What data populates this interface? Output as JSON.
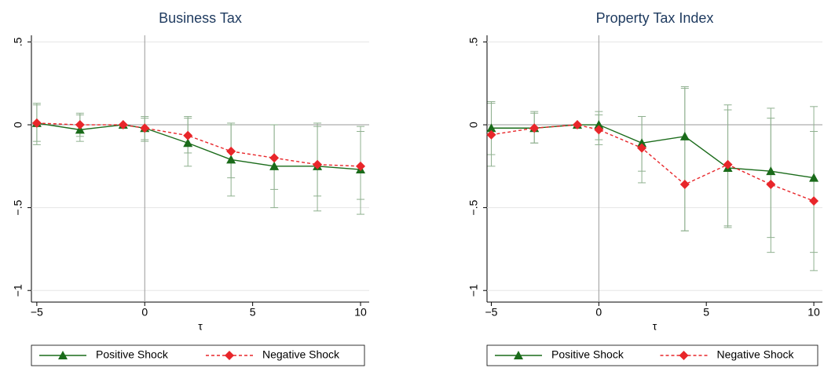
{
  "chart_data": [
    {
      "type": "line",
      "title": "Business Tax",
      "x_label": "τ",
      "x": [
        -5,
        -3,
        -1,
        0,
        2,
        4,
        6,
        8,
        10
      ],
      "series": [
        {
          "name": "Positive Shock",
          "color": "#1a6b1a",
          "marker": "triangle",
          "line_style": "solid",
          "values": [
            0.01,
            -0.03,
            0,
            -0.02,
            -0.11,
            -0.21,
            -0.25,
            -0.25,
            -0.27
          ],
          "ci_low": [
            -0.12,
            -0.1,
            null,
            -0.09,
            -0.25,
            -0.43,
            -0.5,
            -0.52,
            -0.54
          ],
          "ci_high": [
            0.13,
            0.06,
            null,
            0.04,
            0.05,
            0.01,
            0.0,
            0.01,
            -0.01
          ]
        },
        {
          "name": "Negative Shock",
          "color": "#e8262a",
          "marker": "diamond",
          "line_style": "dashed",
          "values": [
            0.01,
            0.0,
            0,
            -0.02,
            -0.065,
            -0.16,
            -0.2,
            -0.24,
            -0.25
          ],
          "ci_low": [
            -0.1,
            -0.07,
            null,
            -0.1,
            -0.17,
            -0.32,
            -0.39,
            -0.43,
            -0.45
          ],
          "ci_high": [
            0.12,
            0.07,
            null,
            0.05,
            0.04,
            0.0,
            0.0,
            -0.01,
            -0.04
          ]
        }
      ],
      "errorbar_color": "#8fb08f",
      "xlim": [
        -5.25,
        10.4
      ],
      "ylim": [
        -1.07,
        0.54
      ],
      "xticks": [
        {
          "value": -5,
          "label": "−5"
        },
        0,
        5,
        10
      ],
      "yticks": [
        {
          "value": -1,
          "label": "−1"
        },
        {
          "value": -0.5,
          "label": "−.5"
        },
        0,
        {
          "value": 0.5,
          "label": ".5"
        }
      ],
      "grid": true,
      "xline": 0,
      "yline": 0,
      "legend": "bottom"
    },
    {
      "type": "line",
      "title": "Property Tax Index",
      "x_label": "τ",
      "x": [
        -5,
        -3,
        -1,
        0,
        2,
        4,
        6,
        8,
        10
      ],
      "series": [
        {
          "name": "Positive Shock",
          "color": "#1a6b1a",
          "marker": "triangle",
          "line_style": "solid",
          "values": [
            -0.02,
            -0.02,
            0,
            0,
            -0.11,
            -0.07,
            -0.26,
            -0.28,
            -0.32
          ],
          "ci_low": [
            -0.18,
            -0.11,
            null,
            -0.09,
            -0.28,
            -0.64,
            -0.62,
            -0.68,
            -0.77
          ],
          "ci_high": [
            0.14,
            0.08,
            null,
            0.08,
            0.05,
            0.23,
            0.12,
            0.1,
            0.11
          ]
        },
        {
          "name": "Negative Shock",
          "color": "#e8262a",
          "marker": "diamond",
          "line_style": "dashed",
          "values": [
            -0.06,
            -0.02,
            0,
            -0.03,
            -0.14,
            -0.36,
            -0.24,
            -0.36,
            -0.46
          ],
          "ci_low": [
            -0.25,
            -0.11,
            null,
            -0.12,
            -0.35,
            -0.64,
            -0.61,
            -0.77,
            -0.88
          ],
          "ci_high": [
            0.13,
            0.07,
            null,
            0.06,
            0.05,
            0.22,
            0.09,
            0.04,
            -0.04
          ]
        }
      ],
      "errorbar_color": "#8fb08f",
      "xlim": [
        -5.2,
        10.4
      ],
      "ylim": [
        -1.07,
        0.54
      ],
      "xticks": [
        {
          "value": -5,
          "label": "−5"
        },
        0,
        5,
        10
      ],
      "yticks": [
        {
          "value": -1,
          "label": "−1"
        },
        {
          "value": -0.5,
          "label": "−.5"
        },
        0,
        {
          "value": 0.5,
          "label": ".5"
        }
      ],
      "grid": true,
      "xline": 0,
      "yline": 0,
      "legend": "bottom"
    }
  ]
}
